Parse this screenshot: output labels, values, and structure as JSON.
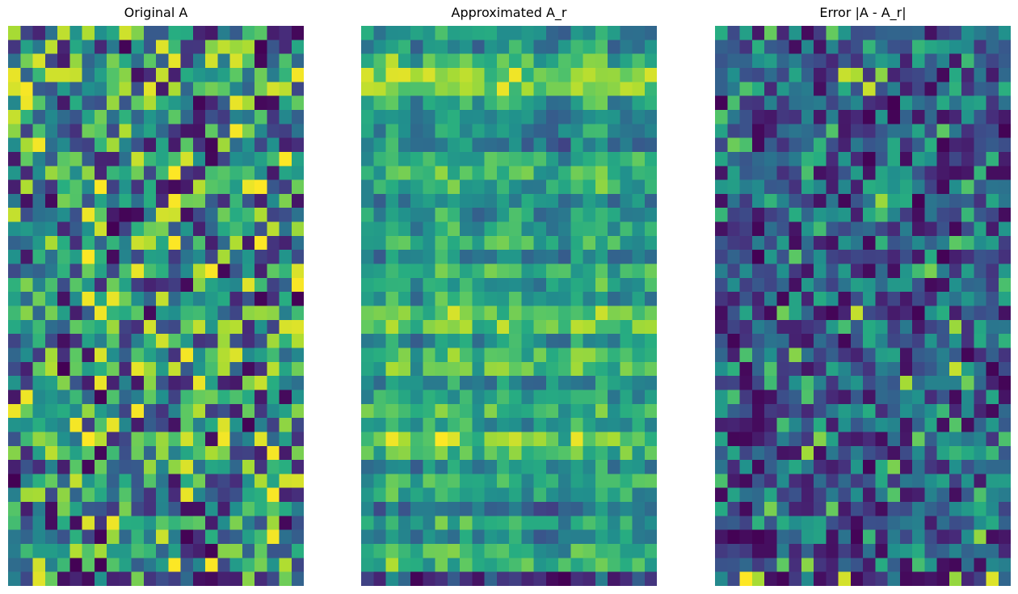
{
  "chart_data": [
    {
      "type": "heatmap",
      "title": "Original A",
      "colormap": "viridis",
      "rows": 40,
      "cols": 24,
      "vmin": 0,
      "vmax": 1,
      "axis": "off",
      "seed": 20240601
    },
    {
      "type": "heatmap",
      "title": "Approximated A_r",
      "colormap": "viridis",
      "rows": 40,
      "cols": 24,
      "vmin": 0,
      "vmax": 1,
      "axis": "off",
      "derived_from": "low-rank approximation of Original A"
    },
    {
      "type": "heatmap",
      "title": "Error |A - A_r|",
      "colormap": "viridis",
      "rows": 40,
      "cols": 24,
      "vmin": 0,
      "vmax": 1,
      "axis": "off",
      "derived_from": "absolute difference of Original A and Approximated A_r"
    }
  ]
}
